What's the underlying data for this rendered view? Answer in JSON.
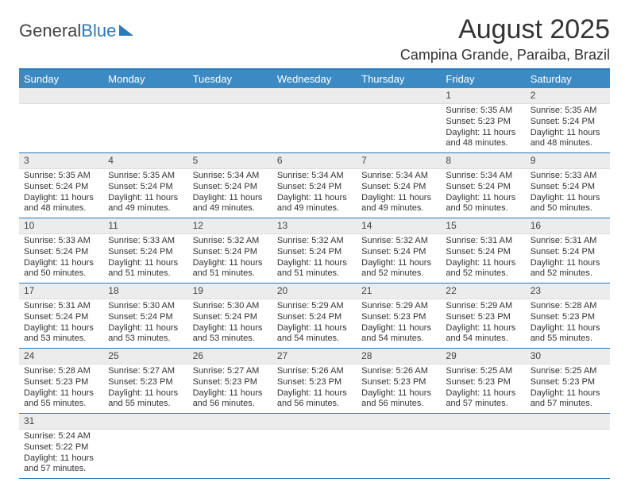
{
  "logo": {
    "part1": "General",
    "part2": "Blue"
  },
  "title": "August 2025",
  "location": "Campina Grande, Paraiba, Brazil",
  "columns": [
    "Sunday",
    "Monday",
    "Tuesday",
    "Wednesday",
    "Thursday",
    "Friday",
    "Saturday"
  ],
  "style": {
    "header_bg": "#3b8ac4",
    "header_text": "#ffffff",
    "daynum_bg": "#ececec",
    "row_divider": "#2a79b8",
    "body_text": "#333333",
    "title_fontsize": 34,
    "location_fontsize": 18,
    "col_header_fontsize": 13,
    "cell_fontsize": 11
  },
  "weeks": [
    [
      null,
      null,
      null,
      null,
      null,
      {
        "n": "1",
        "sr": "Sunrise: 5:35 AM",
        "ss": "Sunset: 5:23 PM",
        "d1": "Daylight: 11 hours",
        "d2": "and 48 minutes."
      },
      {
        "n": "2",
        "sr": "Sunrise: 5:35 AM",
        "ss": "Sunset: 5:24 PM",
        "d1": "Daylight: 11 hours",
        "d2": "and 48 minutes."
      }
    ],
    [
      {
        "n": "3",
        "sr": "Sunrise: 5:35 AM",
        "ss": "Sunset: 5:24 PM",
        "d1": "Daylight: 11 hours",
        "d2": "and 48 minutes."
      },
      {
        "n": "4",
        "sr": "Sunrise: 5:35 AM",
        "ss": "Sunset: 5:24 PM",
        "d1": "Daylight: 11 hours",
        "d2": "and 49 minutes."
      },
      {
        "n": "5",
        "sr": "Sunrise: 5:34 AM",
        "ss": "Sunset: 5:24 PM",
        "d1": "Daylight: 11 hours",
        "d2": "and 49 minutes."
      },
      {
        "n": "6",
        "sr": "Sunrise: 5:34 AM",
        "ss": "Sunset: 5:24 PM",
        "d1": "Daylight: 11 hours",
        "d2": "and 49 minutes."
      },
      {
        "n": "7",
        "sr": "Sunrise: 5:34 AM",
        "ss": "Sunset: 5:24 PM",
        "d1": "Daylight: 11 hours",
        "d2": "and 49 minutes."
      },
      {
        "n": "8",
        "sr": "Sunrise: 5:34 AM",
        "ss": "Sunset: 5:24 PM",
        "d1": "Daylight: 11 hours",
        "d2": "and 50 minutes."
      },
      {
        "n": "9",
        "sr": "Sunrise: 5:33 AM",
        "ss": "Sunset: 5:24 PM",
        "d1": "Daylight: 11 hours",
        "d2": "and 50 minutes."
      }
    ],
    [
      {
        "n": "10",
        "sr": "Sunrise: 5:33 AM",
        "ss": "Sunset: 5:24 PM",
        "d1": "Daylight: 11 hours",
        "d2": "and 50 minutes."
      },
      {
        "n": "11",
        "sr": "Sunrise: 5:33 AM",
        "ss": "Sunset: 5:24 PM",
        "d1": "Daylight: 11 hours",
        "d2": "and 51 minutes."
      },
      {
        "n": "12",
        "sr": "Sunrise: 5:32 AM",
        "ss": "Sunset: 5:24 PM",
        "d1": "Daylight: 11 hours",
        "d2": "and 51 minutes."
      },
      {
        "n": "13",
        "sr": "Sunrise: 5:32 AM",
        "ss": "Sunset: 5:24 PM",
        "d1": "Daylight: 11 hours",
        "d2": "and 51 minutes."
      },
      {
        "n": "14",
        "sr": "Sunrise: 5:32 AM",
        "ss": "Sunset: 5:24 PM",
        "d1": "Daylight: 11 hours",
        "d2": "and 52 minutes."
      },
      {
        "n": "15",
        "sr": "Sunrise: 5:31 AM",
        "ss": "Sunset: 5:24 PM",
        "d1": "Daylight: 11 hours",
        "d2": "and 52 minutes."
      },
      {
        "n": "16",
        "sr": "Sunrise: 5:31 AM",
        "ss": "Sunset: 5:24 PM",
        "d1": "Daylight: 11 hours",
        "d2": "and 52 minutes."
      }
    ],
    [
      {
        "n": "17",
        "sr": "Sunrise: 5:31 AM",
        "ss": "Sunset: 5:24 PM",
        "d1": "Daylight: 11 hours",
        "d2": "and 53 minutes."
      },
      {
        "n": "18",
        "sr": "Sunrise: 5:30 AM",
        "ss": "Sunset: 5:24 PM",
        "d1": "Daylight: 11 hours",
        "d2": "and 53 minutes."
      },
      {
        "n": "19",
        "sr": "Sunrise: 5:30 AM",
        "ss": "Sunset: 5:24 PM",
        "d1": "Daylight: 11 hours",
        "d2": "and 53 minutes."
      },
      {
        "n": "20",
        "sr": "Sunrise: 5:29 AM",
        "ss": "Sunset: 5:24 PM",
        "d1": "Daylight: 11 hours",
        "d2": "and 54 minutes."
      },
      {
        "n": "21",
        "sr": "Sunrise: 5:29 AM",
        "ss": "Sunset: 5:23 PM",
        "d1": "Daylight: 11 hours",
        "d2": "and 54 minutes."
      },
      {
        "n": "22",
        "sr": "Sunrise: 5:29 AM",
        "ss": "Sunset: 5:23 PM",
        "d1": "Daylight: 11 hours",
        "d2": "and 54 minutes."
      },
      {
        "n": "23",
        "sr": "Sunrise: 5:28 AM",
        "ss": "Sunset: 5:23 PM",
        "d1": "Daylight: 11 hours",
        "d2": "and 55 minutes."
      }
    ],
    [
      {
        "n": "24",
        "sr": "Sunrise: 5:28 AM",
        "ss": "Sunset: 5:23 PM",
        "d1": "Daylight: 11 hours",
        "d2": "and 55 minutes."
      },
      {
        "n": "25",
        "sr": "Sunrise: 5:27 AM",
        "ss": "Sunset: 5:23 PM",
        "d1": "Daylight: 11 hours",
        "d2": "and 55 minutes."
      },
      {
        "n": "26",
        "sr": "Sunrise: 5:27 AM",
        "ss": "Sunset: 5:23 PM",
        "d1": "Daylight: 11 hours",
        "d2": "and 56 minutes."
      },
      {
        "n": "27",
        "sr": "Sunrise: 5:26 AM",
        "ss": "Sunset: 5:23 PM",
        "d1": "Daylight: 11 hours",
        "d2": "and 56 minutes."
      },
      {
        "n": "28",
        "sr": "Sunrise: 5:26 AM",
        "ss": "Sunset: 5:23 PM",
        "d1": "Daylight: 11 hours",
        "d2": "and 56 minutes."
      },
      {
        "n": "29",
        "sr": "Sunrise: 5:25 AM",
        "ss": "Sunset: 5:23 PM",
        "d1": "Daylight: 11 hours",
        "d2": "and 57 minutes."
      },
      {
        "n": "30",
        "sr": "Sunrise: 5:25 AM",
        "ss": "Sunset: 5:23 PM",
        "d1": "Daylight: 11 hours",
        "d2": "and 57 minutes."
      }
    ],
    [
      {
        "n": "31",
        "sr": "Sunrise: 5:24 AM",
        "ss": "Sunset: 5:22 PM",
        "d1": "Daylight: 11 hours",
        "d2": "and 57 minutes."
      },
      null,
      null,
      null,
      null,
      null,
      null
    ]
  ]
}
